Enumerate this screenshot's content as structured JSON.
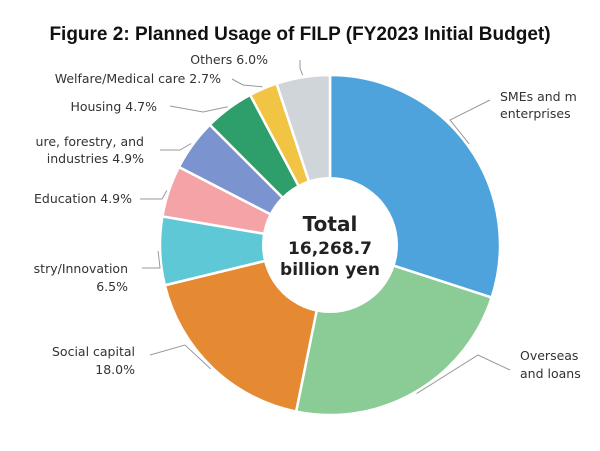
{
  "chart_data": {
    "type": "pie",
    "title": "Figure 2: Planned Usage of FILP (FY2023 Initial Budget)",
    "center": {
      "line1": "Total",
      "line2": "16,268.7",
      "line3": "billion yen"
    },
    "slices": [
      {
        "label_lines": [
          "SMEs and m",
          "enterprises"
        ],
        "value": null,
        "color": "#4fa3dc"
      },
      {
        "label_lines": [
          "Overseas",
          "and loans"
        ],
        "value": null,
        "color": "#8bcc96"
      },
      {
        "label_lines": [
          "Social capital",
          "18.0%"
        ],
        "value": 18.0,
        "color": "#e58a33"
      },
      {
        "label_lines": [
          "stry/Innovation",
          "6.5%"
        ],
        "value": 6.5,
        "color": "#5ec8d6"
      },
      {
        "label_lines": [
          "Education 4.9%"
        ],
        "value": 4.9,
        "color": "#f4a3a6"
      },
      {
        "label_lines": [
          "ure, forestry, and",
          "industries 4.9%"
        ],
        "value": 4.9,
        "color": "#7b93cf"
      },
      {
        "label_lines": [
          "Housing 4.7%"
        ],
        "value": 4.7,
        "color": "#2e9e6b"
      },
      {
        "label_lines": [
          "Welfare/Medical care 2.7%"
        ],
        "value": 2.7,
        "color": "#f2c443"
      },
      {
        "label_lines": [
          "Others 6.0%"
        ],
        "value": 6.0,
        "color": "#d0d5da"
      }
    ]
  }
}
